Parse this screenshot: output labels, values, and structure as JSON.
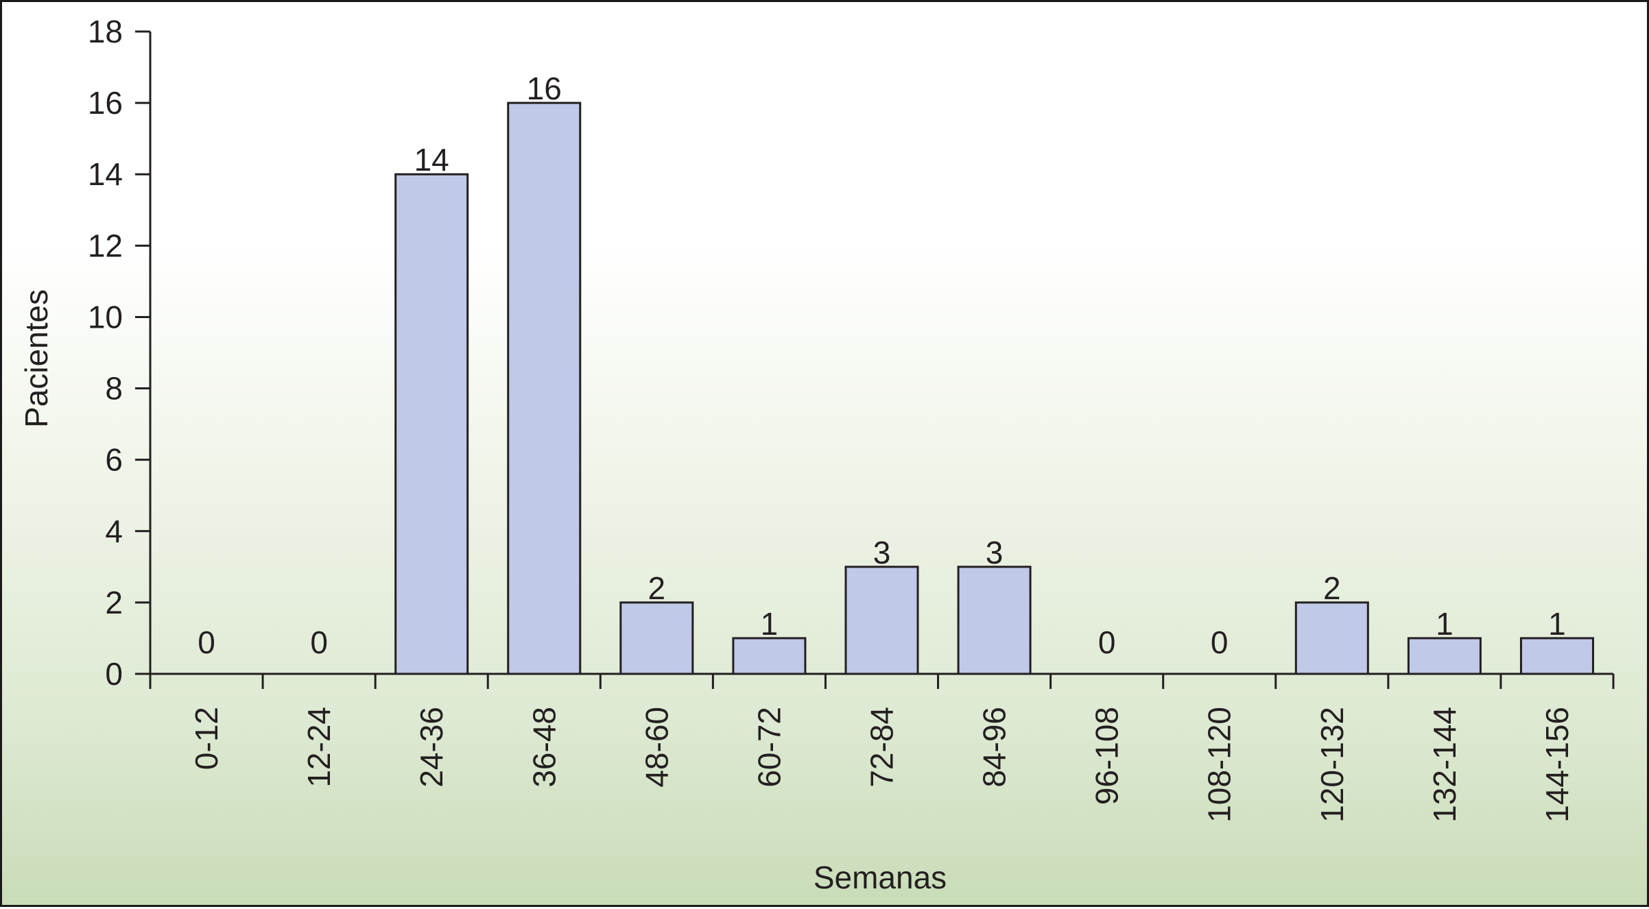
{
  "chart_data": {
    "type": "bar",
    "categories": [
      "0-12",
      "12-24",
      "24-36",
      "36-48",
      "48-60",
      "60-72",
      "72-84",
      "84-96",
      "96-108",
      "108-120",
      "120-132",
      "132-144",
      "144-156"
    ],
    "values": [
      0,
      0,
      14,
      16,
      2,
      1,
      3,
      3,
      0,
      0,
      2,
      1,
      1
    ],
    "data_labels": [
      "0",
      "0",
      "14",
      "16",
      "2",
      "1",
      "3",
      "3",
      "0",
      "0",
      "2",
      "1",
      "1"
    ],
    "xlabel": "Semanas",
    "ylabel": "Pacientes",
    "ylim": [
      0,
      18
    ],
    "yticks": [
      0,
      2,
      4,
      6,
      8,
      10,
      12,
      14,
      16,
      18
    ],
    "grid": false,
    "legend": "none",
    "bar_color": "#c1c9e8",
    "bar_edge_color": "#231f20",
    "background_gradient": [
      "#ffffff",
      "#c9dcb8"
    ]
  }
}
